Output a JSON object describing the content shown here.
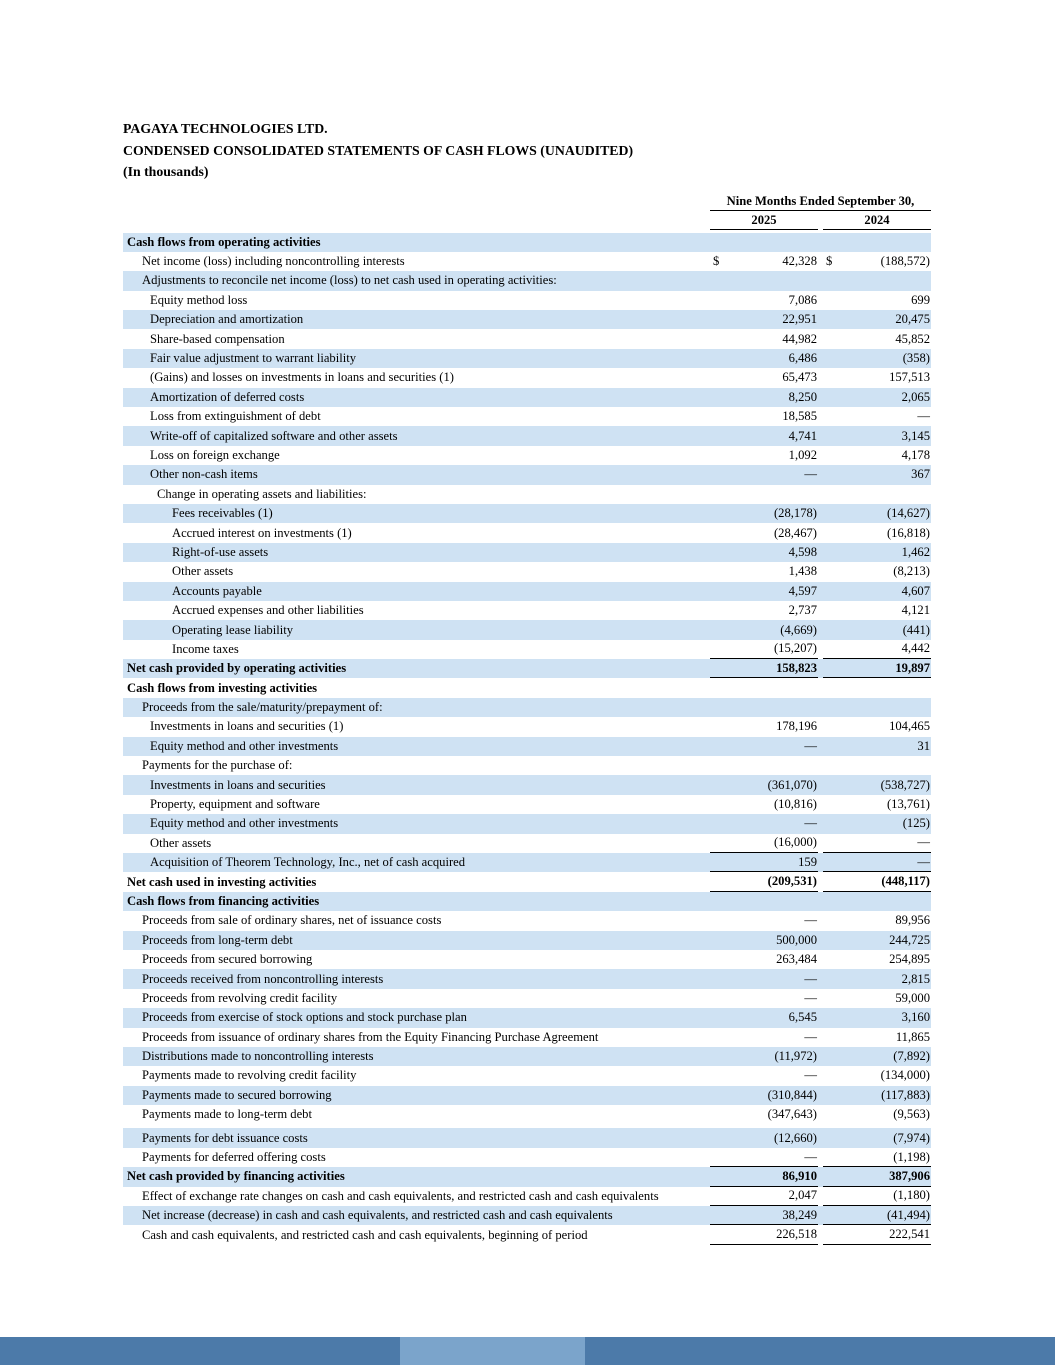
{
  "colors": {
    "row_shade": "#cfe2f3",
    "footer_base": "#4c7aa9",
    "footer_accent": "#7ba4cb"
  },
  "header": {
    "company": "PAGAYA TECHNOLOGIES LTD.",
    "title": "CONDENSED CONSOLIDATED STATEMENTS OF CASH FLOWS (UNAUDITED)",
    "subtitle": "(In thousands)"
  },
  "table": {
    "period_header": "Nine Months Ended September 30,",
    "col_2025": "2025",
    "col_2024": "2024",
    "rows": [
      {
        "label": "Cash flows from operating activities",
        "indent": 0,
        "bold": true,
        "shaded": true,
        "v2025": "",
        "v2024": ""
      },
      {
        "label": "Net income (loss) including noncontrolling interests",
        "indent": 1,
        "dollar": true,
        "v2025": "42,328",
        "v2024": "(188,572)"
      },
      {
        "label": "Adjustments to reconcile net income (loss) to net cash used in operating activities:",
        "indent": 1,
        "shaded": true,
        "v2025": "",
        "v2024": ""
      },
      {
        "label": "Equity method loss",
        "indent": 2,
        "v2025": "7,086",
        "v2024": "699"
      },
      {
        "label": "Depreciation and amortization",
        "indent": 2,
        "shaded": true,
        "v2025": "22,951",
        "v2024": "20,475"
      },
      {
        "label": "Share-based compensation",
        "indent": 2,
        "v2025": "44,982",
        "v2024": "45,852"
      },
      {
        "label": "Fair value adjustment to warrant liability",
        "indent": 2,
        "shaded": true,
        "v2025": "6,486",
        "v2024": "(358)"
      },
      {
        "label": "(Gains) and losses on investments in loans and securities (1)",
        "indent": 2,
        "v2025": "65,473",
        "v2024": "157,513"
      },
      {
        "label": "Amortization of deferred costs",
        "indent": 2,
        "shaded": true,
        "v2025": "8,250",
        "v2024": "2,065"
      },
      {
        "label": "Loss from extinguishment of debt",
        "indent": 2,
        "v2025": "18,585",
        "v2024": "—"
      },
      {
        "label": "Write-off of capitalized software and other assets",
        "indent": 2,
        "shaded": true,
        "v2025": "4,741",
        "v2024": "3,145"
      },
      {
        "label": "Loss on foreign exchange",
        "indent": 2,
        "v2025": "1,092",
        "v2024": "4,178"
      },
      {
        "label": "Other non-cash items",
        "indent": 2,
        "shaded": true,
        "v2025": "—",
        "v2024": "367"
      },
      {
        "label": "Change in operating assets and liabilities:",
        "indent": 3,
        "v2025": "",
        "v2024": ""
      },
      {
        "label": "Fees receivables (1)",
        "indent": 4,
        "shaded": true,
        "v2025": "(28,178)",
        "v2024": "(14,627)"
      },
      {
        "label": "Accrued interest on investments (1)",
        "indent": 4,
        "v2025": "(28,467)",
        "v2024": "(16,818)"
      },
      {
        "label": "Right-of-use assets",
        "indent": 4,
        "shaded": true,
        "v2025": "4,598",
        "v2024": "1,462"
      },
      {
        "label": "Other assets",
        "indent": 4,
        "v2025": "1,438",
        "v2024": "(8,213)"
      },
      {
        "label": "Accounts payable",
        "indent": 4,
        "shaded": true,
        "v2025": "4,597",
        "v2024": "4,607"
      },
      {
        "label": "Accrued expenses and other liabilities",
        "indent": 4,
        "v2025": "2,737",
        "v2024": "4,121"
      },
      {
        "label": "Operating lease liability",
        "indent": 4,
        "shaded": true,
        "v2025": "(4,669)",
        "v2024": "(441)"
      },
      {
        "label": "Income taxes",
        "indent": 4,
        "v2025": "(15,207)",
        "v2024": "4,442",
        "rule": true
      },
      {
        "label": "Net cash provided by operating activities",
        "indent": 0,
        "bold": true,
        "shaded": true,
        "v2025": "158,823",
        "v2024": "19,897",
        "rule": true
      },
      {
        "label": "Cash flows from investing activities",
        "indent": 0,
        "bold": true,
        "v2025": "",
        "v2024": ""
      },
      {
        "label": "Proceeds from the sale/maturity/prepayment of:",
        "indent": 1,
        "shaded": true,
        "v2025": "",
        "v2024": ""
      },
      {
        "label": "Investments in loans and securities (1)",
        "indent": 2,
        "v2025": "178,196",
        "v2024": "104,465"
      },
      {
        "label": "Equity method and other investments",
        "indent": 2,
        "shaded": true,
        "v2025": "—",
        "v2024": "31"
      },
      {
        "label": "Payments for the purchase of:",
        "indent": 1,
        "v2025": "",
        "v2024": ""
      },
      {
        "label": "Investments in loans and securities",
        "indent": 2,
        "shaded": true,
        "v2025": "(361,070)",
        "v2024": "(538,727)"
      },
      {
        "label": "Property, equipment and software",
        "indent": 2,
        "v2025": "(10,816)",
        "v2024": "(13,761)"
      },
      {
        "label": "Equity method and other investments",
        "indent": 2,
        "shaded": true,
        "v2025": "—",
        "v2024": "(125)"
      },
      {
        "label": "Other assets",
        "indent": 2,
        "v2025": "(16,000)",
        "v2024": "—",
        "rule": true
      },
      {
        "label": "Acquisition of Theorem Technology, Inc., net of cash acquired",
        "indent": 2,
        "shaded": true,
        "v2025": "159",
        "v2024": "—",
        "rule": true
      },
      {
        "label": "Net cash used in investing activities",
        "indent": 0,
        "bold": true,
        "v2025": "(209,531)",
        "v2024": "(448,117)",
        "rule": true
      },
      {
        "label": "Cash flows from financing activities",
        "indent": 0,
        "bold": true,
        "shaded": true,
        "v2025": "",
        "v2024": ""
      },
      {
        "label": "Proceeds from sale of ordinary shares, net of issuance costs",
        "indent": 1,
        "v2025": "—",
        "v2024": "89,956"
      },
      {
        "label": "Proceeds from long-term debt",
        "indent": 1,
        "shaded": true,
        "v2025": "500,000",
        "v2024": "244,725"
      },
      {
        "label": "Proceeds from secured borrowing",
        "indent": 1,
        "v2025": "263,484",
        "v2024": "254,895"
      },
      {
        "label": "Proceeds received from noncontrolling interests",
        "indent": 1,
        "shaded": true,
        "v2025": "—",
        "v2024": "2,815"
      },
      {
        "label": "Proceeds from revolving credit facility",
        "indent": 1,
        "v2025": "—",
        "v2024": "59,000"
      },
      {
        "label": "Proceeds from exercise of stock options and stock purchase plan",
        "indent": 1,
        "shaded": true,
        "v2025": "6,545",
        "v2024": "3,160"
      },
      {
        "label": "Proceeds from issuance of ordinary shares from the Equity Financing Purchase Agreement",
        "indent": 1,
        "v2025": "—",
        "v2024": "11,865"
      },
      {
        "label": "Distributions made to noncontrolling interests",
        "indent": 1,
        "shaded": true,
        "v2025": "(11,972)",
        "v2024": "(7,892)"
      },
      {
        "label": "Payments made to revolving credit facility",
        "indent": 1,
        "v2025": "—",
        "v2024": "(134,000)"
      },
      {
        "label": "Payments made to secured borrowing",
        "indent": 1,
        "shaded": true,
        "v2025": "(310,844)",
        "v2024": "(117,883)"
      },
      {
        "label": "Payments made to long-term debt",
        "indent": 1,
        "v2025": "(347,643)",
        "v2024": "(9,563)"
      },
      {
        "label": "Payments for debt issuance costs",
        "indent": 1,
        "shaded": true,
        "v2025": "(12,660)",
        "v2024": "(7,974)",
        "gap": true
      },
      {
        "label": "Payments for deferred offering costs",
        "indent": 1,
        "v2025": "—",
        "v2024": "(1,198)",
        "rule": true
      },
      {
        "label": "Net cash provided by financing activities",
        "indent": 0,
        "bold": true,
        "shaded": true,
        "v2025": "86,910",
        "v2024": "387,906",
        "rule": true
      },
      {
        "label": "Effect of exchange rate changes on cash and cash equivalents, and restricted cash and cash equivalents",
        "indent": 1,
        "v2025": "2,047",
        "v2024": "(1,180)",
        "rule": true
      },
      {
        "label": "Net increase (decrease) in cash and cash equivalents, and restricted cash and cash equivalents",
        "indent": 1,
        "shaded": true,
        "v2025": "38,249",
        "v2024": "(41,494)",
        "rule": true
      },
      {
        "label": "Cash and cash equivalents, and restricted cash and cash equivalents, beginning of period",
        "indent": 1,
        "v2025": "226,518",
        "v2024": "222,541",
        "rule": true
      }
    ]
  }
}
